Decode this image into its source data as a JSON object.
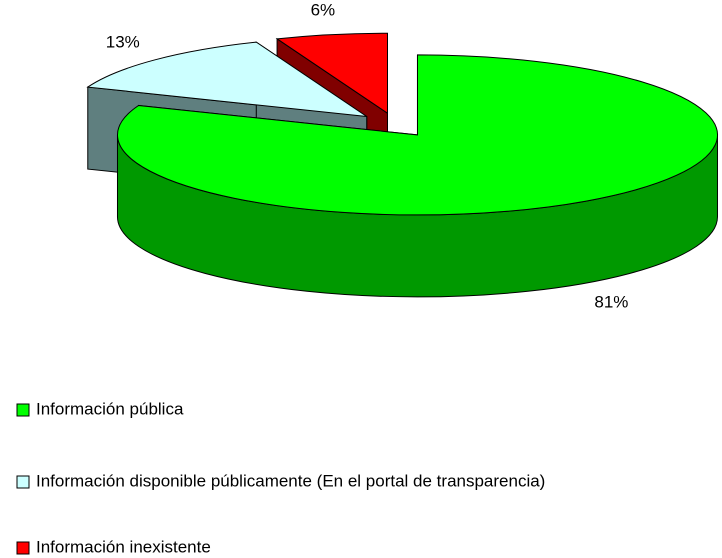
{
  "chart_data": {
    "type": "pie",
    "categories": [
      "Información pública",
      "Información disponible públicamente (En el portal de transparencia)",
      "Información inexistente"
    ],
    "values": [
      81,
      13,
      6
    ],
    "value_labels": [
      "81%",
      "13%",
      "6%"
    ],
    "colors": [
      "#00ff00",
      "#ccffff",
      "#ff0000"
    ],
    "side_colors": [
      "#009900",
      "#5f7f7f",
      "#800000"
    ],
    "legend": "bottom-left"
  }
}
